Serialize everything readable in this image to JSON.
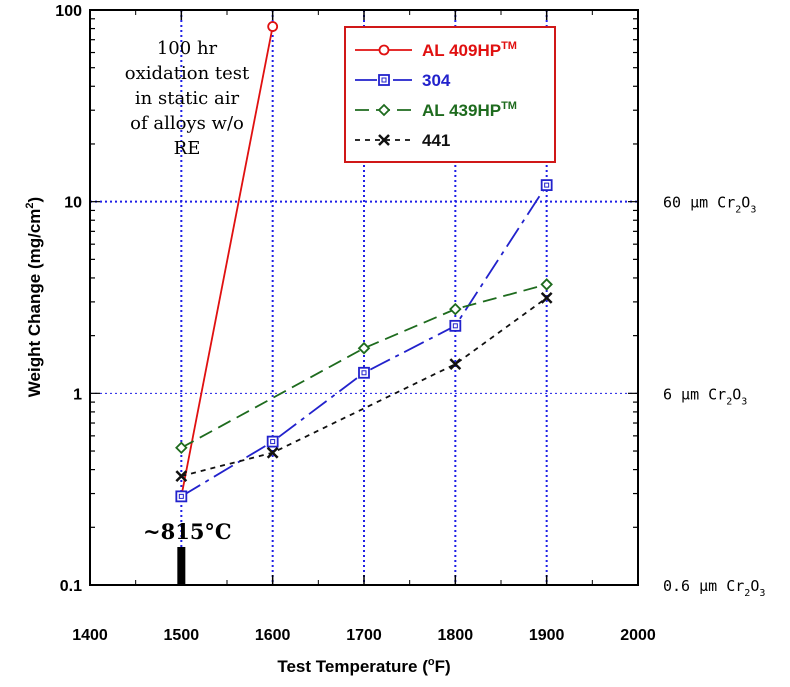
{
  "chart_data": {
    "type": "line",
    "xlabel_main": "Test Temperature (",
    "xlabel_unit_sup": "o",
    "xlabel_unit": "F)",
    "ylabel": "Weight Change (mg/cm",
    "ylabel_sup": "2",
    "ylabel_end": ")",
    "y_scale": "log",
    "xlim": [
      1400,
      2000
    ],
    "ylim": [
      0.1,
      100
    ],
    "x_ticks": [
      "1400",
      "1500",
      "1600",
      "1700",
      "1800",
      "1900",
      "2000"
    ],
    "x_tick_values": [
      1400,
      1500,
      1600,
      1700,
      1800,
      1900,
      2000
    ],
    "y_ticks": [
      "0.1",
      "1",
      "10",
      "100"
    ],
    "y_tick_values": [
      0.1,
      1,
      10,
      100
    ],
    "annotation_lines": [
      "100 hr",
      "oxidation test",
      "in static air",
      "of alloys w/o",
      "RE"
    ],
    "marker_label": "~815°C",
    "marker_x": 1500,
    "right_labels": [
      {
        "prefix": "60 µm Cr",
        "sub1": "2",
        "mid": "O",
        "sub2": "3",
        "y": 10
      },
      {
        "prefix": "6 µm Cr",
        "sub1": "2",
        "mid": "O",
        "sub2": "3",
        "y": 1
      },
      {
        "prefix": "0.6 µm Cr",
        "sub1": "2",
        "mid": "O",
        "sub2": "3",
        "y": 0.1
      }
    ],
    "series": [
      {
        "name": "AL 409HP",
        "name_sup": "TM",
        "color": "#e01010",
        "dash": "",
        "marker": "circle",
        "x": [
          1500,
          1600
        ],
        "y": [
          0.29,
          82
        ]
      },
      {
        "name": "304",
        "name_sup": "",
        "color": "#2222cc",
        "dash": "22,6,4,6",
        "marker": "square",
        "x": [
          1500,
          1600,
          1700,
          1800,
          1900
        ],
        "y": [
          0.29,
          0.56,
          1.28,
          2.25,
          12.2
        ]
      },
      {
        "name": "AL 439HP",
        "name_sup": "TM",
        "color": "#1e6b1e",
        "dash": "14,7",
        "marker": "diamond",
        "x": [
          1500,
          1700,
          1800,
          1900
        ],
        "y": [
          0.52,
          1.72,
          2.75,
          3.7
        ]
      },
      {
        "name": "441",
        "name_sup": "",
        "color": "#111111",
        "dash": "5,5",
        "marker": "x",
        "x": [
          1500,
          1600,
          1800,
          1900
        ],
        "y": [
          0.37,
          0.49,
          1.42,
          3.15
        ]
      }
    ],
    "grid_colors": {
      "vertical": "#1f1fe6",
      "horizontal": "#1f1fe6"
    }
  }
}
